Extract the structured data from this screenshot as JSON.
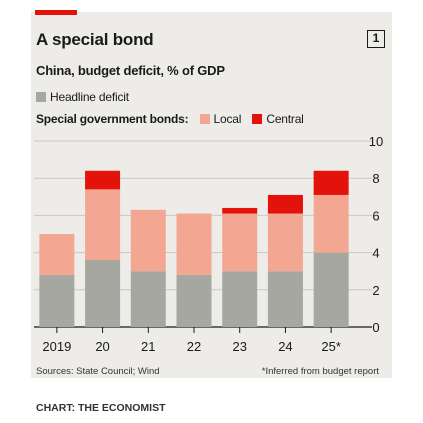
{
  "header": {
    "title": "A special bond",
    "badge": "1",
    "subtitle": "China, budget deficit, % of GDP"
  },
  "legend": {
    "headline_label": "Headline deficit",
    "special_prefix": "Special government bonds:",
    "local_label": "Local",
    "central_label": "Central"
  },
  "colors": {
    "headline": "#a7a7a2",
    "local": "#f3a793",
    "central": "#e3120b",
    "accent": "#e3120b"
  },
  "footer": {
    "sources": "Sources: State Council; Wind",
    "note": "*Inferred from budget report",
    "credit": "CHART: THE ECONOMIST"
  },
  "chart_data": {
    "type": "bar",
    "stacked": true,
    "title": "A special bond",
    "subtitle": "China, budget deficit, % of GDP",
    "categories": [
      "2019",
      "20",
      "21",
      "22",
      "23",
      "24",
      "25*"
    ],
    "series": [
      {
        "name": "Headline deficit",
        "values": [
          2.8,
          3.6,
          3.0,
          2.8,
          3.0,
          3.0,
          4.0
        ]
      },
      {
        "name": "Local",
        "values": [
          2.2,
          3.8,
          3.3,
          3.3,
          3.1,
          3.1,
          3.1
        ]
      },
      {
        "name": "Central",
        "values": [
          0.0,
          1.0,
          0.0,
          0.0,
          0.3,
          1.0,
          1.3
        ]
      }
    ],
    "y_ticks": [
      0,
      2,
      4,
      6,
      8,
      10
    ],
    "ylim": [
      0,
      10
    ],
    "y_axis_side": "right",
    "grid": true
  }
}
